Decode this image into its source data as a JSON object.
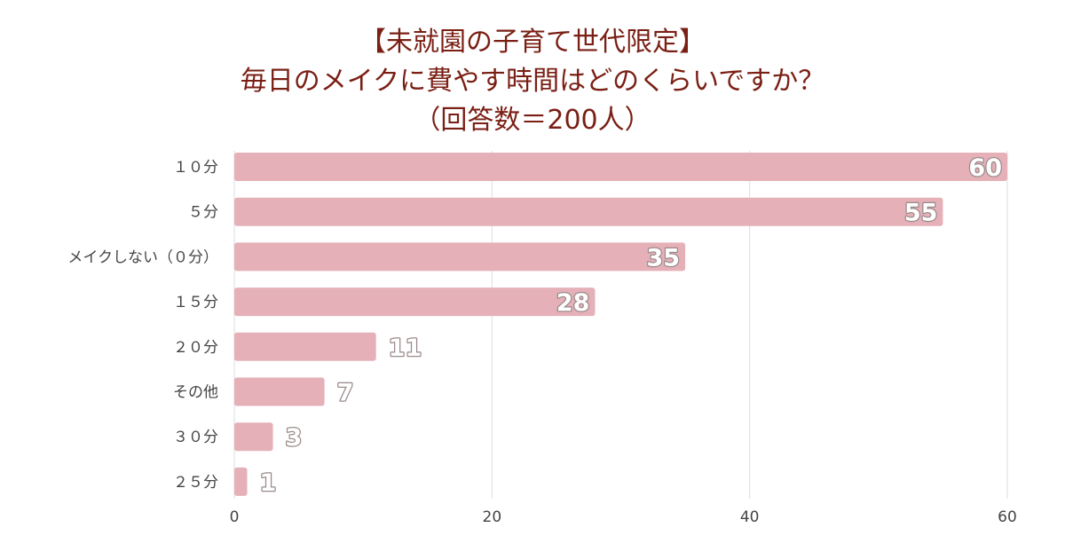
{
  "chart_data": {
    "type": "bar",
    "orientation": "horizontal",
    "title_lines": [
      "【未就園の子育て世代限定】",
      "毎日のメイクに費やす時間はどのくらいですか？",
      "（回答数＝200人）"
    ],
    "categories": [
      "１０分",
      "５分",
      "メイクしない（０分）",
      "１５分",
      "２０分",
      "その他",
      "３０分",
      "２５分"
    ],
    "values": [
      60,
      55,
      35,
      28,
      11,
      7,
      3,
      1
    ],
    "xlim": [
      0,
      60
    ],
    "xticks": [
      0,
      20,
      40,
      60
    ],
    "grid": true,
    "legend": "none",
    "colors": {
      "bar": "#e5b0b8",
      "grid": "#dddddd",
      "axis_text": "#444444",
      "title": "#7a1f14"
    }
  }
}
